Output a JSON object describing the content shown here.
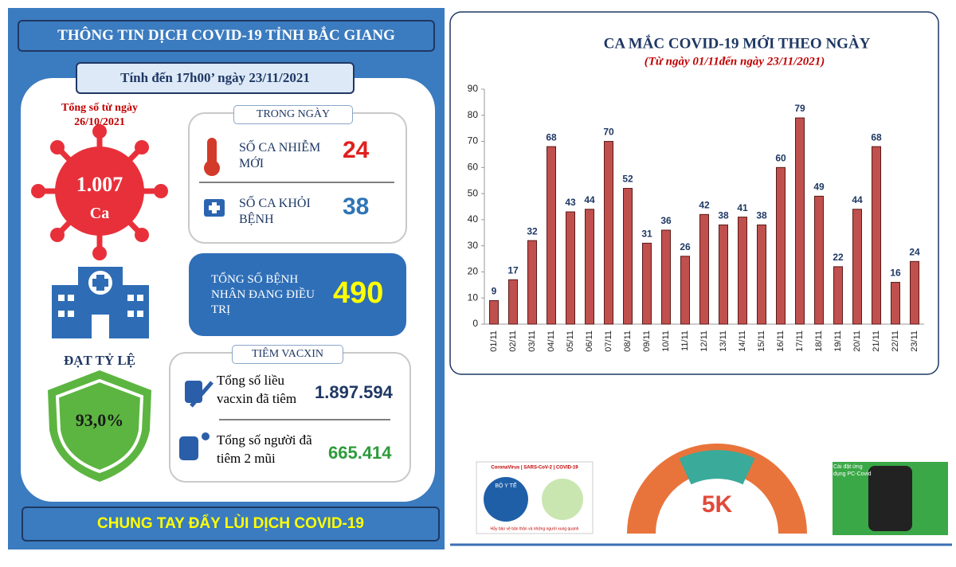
{
  "left_panel": {
    "title": "THÔNG TIN DỊCH COVID-19 TỈNH BẮC GIANG",
    "as_of": "Tính đến 17h00’ ngày 23/11/2021",
    "total_label": "Tổng số từ ngày 26/10/2021",
    "total_value": "1.007",
    "total_unit": "Ca",
    "today_header": "TRONG NGÀY",
    "new_cases_label": "SỐ CA NHIỄM MỚI",
    "new_cases_value": "24",
    "recovered_label": "SỐ CA KHỎI BỆNH",
    "recovered_value": "38",
    "treating_label": "TỔNG SỐ BỆNH NHÂN ĐANG ĐIỀU TRỊ",
    "treating_value": "490",
    "rate_label": "ĐẠT TỶ LỆ",
    "rate_value": "93,0%",
    "vaccine_header": "TIÊM VACXIN",
    "doses_label": "Tổng số liều vacxin đã tiêm",
    "doses_value": "1.897.594",
    "two_dose_label": "Tổng số người đã tiêm 2 mũi",
    "two_dose_value": "665.414",
    "footer": "CHUNG TAY ĐẨY LÙI DỊCH COVID-19"
  },
  "posters": {
    "moh_banner": "CoronaVirus | SARS-CoV-2 | COVID-19",
    "moh_name": "BỘ Y TẾ",
    "moh_slogan": "Hãy bảo vệ bản thân và những người xung quanh",
    "five_k": "5K",
    "app_text": "Cài đặt ứng dụng PC-Covid"
  },
  "chart_data": {
    "type": "bar",
    "title": "CA MẮC COVID-19 MỚI THEO NGÀY",
    "subtitle": "(Từ ngày 01/11đến ngày 23/11/2021)",
    "categories": [
      "01/11",
      "02/11",
      "03/11",
      "04/11",
      "05/11",
      "06/11",
      "07/11",
      "08/11",
      "09/11",
      "10/11",
      "11/11",
      "12/11",
      "13/11",
      "14/11",
      "15/11",
      "16/11",
      "17/11",
      "18/11",
      "19/11",
      "20/11",
      "21/11",
      "22/11",
      "23/11"
    ],
    "values": [
      9,
      17,
      32,
      68,
      43,
      44,
      70,
      52,
      31,
      36,
      26,
      42,
      38,
      41,
      38,
      60,
      79,
      49,
      22,
      44,
      68,
      16,
      24
    ],
    "color": "#c0504d",
    "ylim": [
      0,
      90
    ],
    "yticks": [
      0,
      10,
      20,
      30,
      40,
      50,
      60,
      70,
      80,
      90
    ],
    "grid": false
  }
}
